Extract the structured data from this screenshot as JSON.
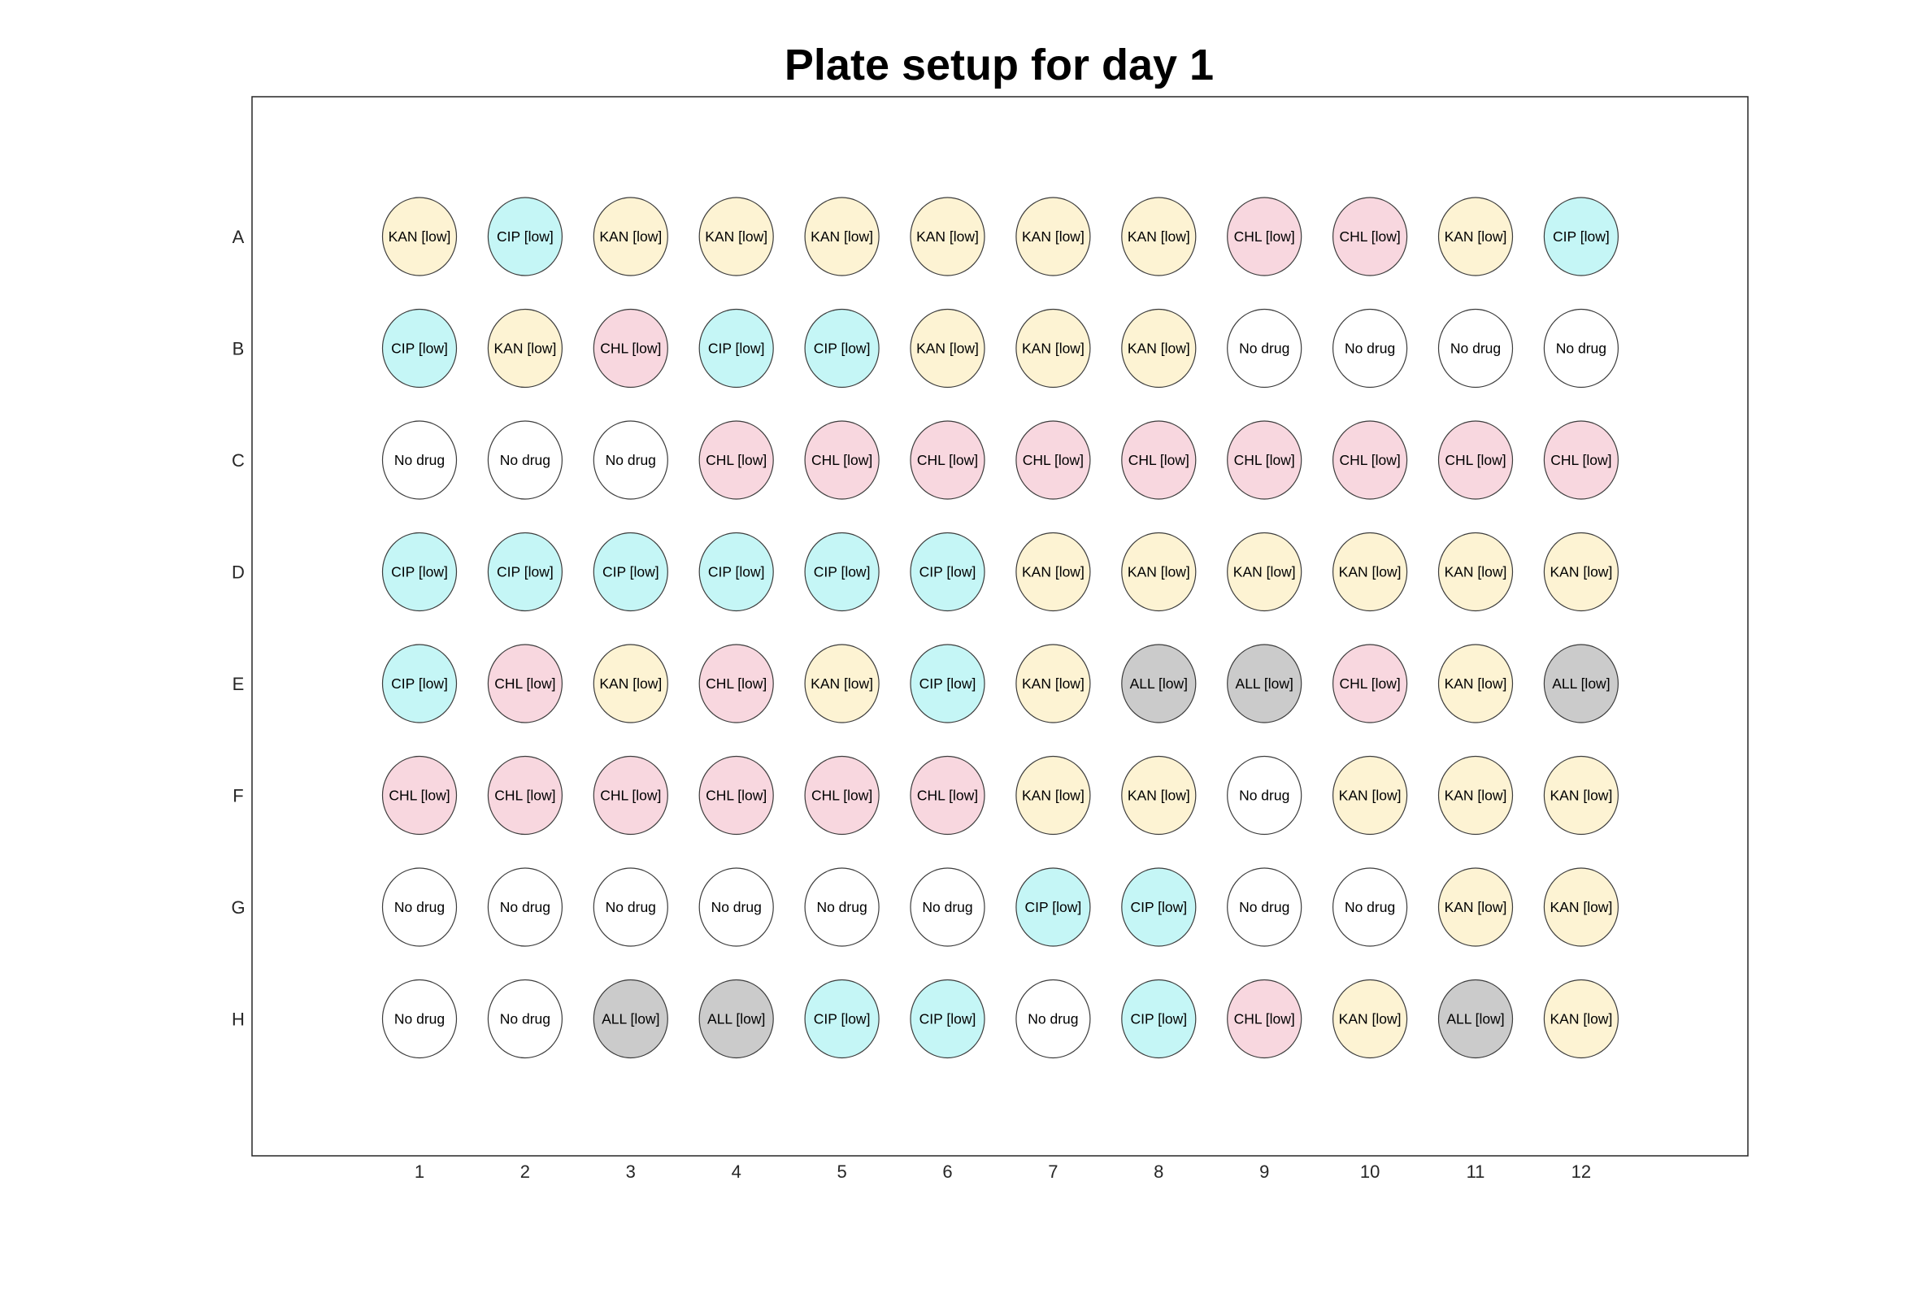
{
  "title": "Plate setup for day 1",
  "rows": [
    "A",
    "B",
    "C",
    "D",
    "E",
    "F",
    "G",
    "H"
  ],
  "columns": [
    "1",
    "2",
    "3",
    "4",
    "5",
    "6",
    "7",
    "8",
    "9",
    "10",
    "11",
    "12"
  ],
  "colors": {
    "KAN [low]": "#fdf3d3",
    "CIP [low]": "#c5f6f6",
    "CHL [low]": "#f8d7df",
    "No drug": "#ffffff",
    "ALL [low]": "#cbcbcb"
  },
  "wells": [
    [
      "KAN [low]",
      "CIP [low]",
      "KAN [low]",
      "KAN [low]",
      "KAN [low]",
      "KAN [low]",
      "KAN [low]",
      "KAN [low]",
      "CHL [low]",
      "CHL [low]",
      "KAN [low]",
      "CIP [low]"
    ],
    [
      "CIP [low]",
      "KAN [low]",
      "CHL [low]",
      "CIP [low]",
      "CIP [low]",
      "KAN [low]",
      "KAN [low]",
      "KAN [low]",
      "No drug",
      "No drug",
      "No drug",
      "No drug"
    ],
    [
      "No drug",
      "No drug",
      "No drug",
      "CHL [low]",
      "CHL [low]",
      "CHL [low]",
      "CHL [low]",
      "CHL [low]",
      "CHL [low]",
      "CHL [low]",
      "CHL [low]",
      "CHL [low]"
    ],
    [
      "CIP [low]",
      "CIP [low]",
      "CIP [low]",
      "CIP [low]",
      "CIP [low]",
      "CIP [low]",
      "KAN [low]",
      "KAN [low]",
      "KAN [low]",
      "KAN [low]",
      "KAN [low]",
      "KAN [low]"
    ],
    [
      "CIP [low]",
      "CHL [low]",
      "KAN [low]",
      "CHL [low]",
      "KAN [low]",
      "CIP [low]",
      "KAN [low]",
      "ALL [low]",
      "ALL [low]",
      "CHL [low]",
      "KAN [low]",
      "ALL [low]"
    ],
    [
      "CHL [low]",
      "CHL [low]",
      "CHL [low]",
      "CHL [low]",
      "CHL [low]",
      "CHL [low]",
      "KAN [low]",
      "KAN [low]",
      "No drug",
      "KAN [low]",
      "KAN [low]",
      "KAN [low]"
    ],
    [
      "No drug",
      "No drug",
      "No drug",
      "No drug",
      "No drug",
      "No drug",
      "CIP [low]",
      "CIP [low]",
      "No drug",
      "No drug",
      "KAN [low]",
      "KAN [low]"
    ],
    [
      "No drug",
      "No drug",
      "ALL [low]",
      "ALL [low]",
      "CIP [low]",
      "CIP [low]",
      "No drug",
      "CIP [low]",
      "CHL [low]",
      "KAN [low]",
      "ALL [low]",
      "KAN [low]"
    ]
  ]
}
